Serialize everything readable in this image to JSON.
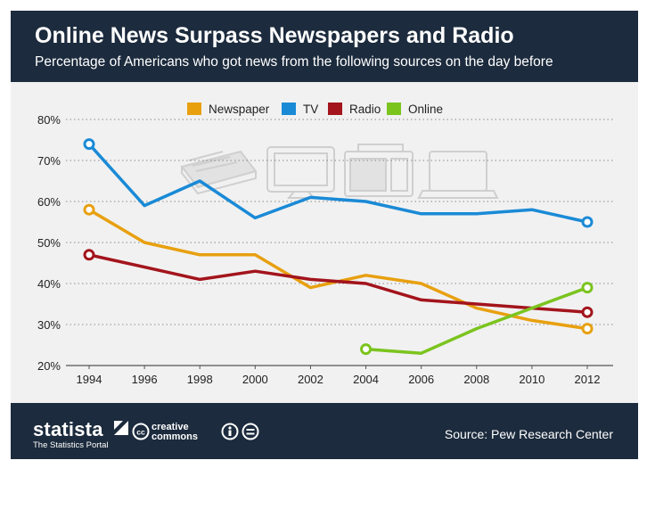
{
  "header": {
    "title": "Online News Surpass Newspapers and Radio",
    "subtitle": "Percentage of Americans who got news from the following sources on the day before"
  },
  "footer": {
    "brand": "statista",
    "tagline": "The Statistics Portal",
    "cc_top": "creative",
    "cc_bottom": "commons",
    "source": "Source: Pew Research Center"
  },
  "colors": {
    "header_bg": "#1c2b3d",
    "plot_bg": "#f1f1f1",
    "Newspaper": "#e8a00f",
    "TV": "#1a8ad6",
    "Radio": "#a3141c",
    "Online": "#7bc41e"
  },
  "icons": [
    "newspaper-icon",
    "tv-icon",
    "radio-icon",
    "laptop-icon"
  ],
  "chart_data": {
    "type": "line",
    "title": "Online News Surpass Newspapers and Radio",
    "subtitle": "Percentage of Americans who got news from the following sources on the day before",
    "xlabel": "",
    "ylabel": "",
    "x": [
      1994,
      1996,
      1998,
      2000,
      2002,
      2004,
      2006,
      2008,
      2010,
      2012
    ],
    "y_ticks": [
      "20%",
      "30%",
      "40%",
      "50%",
      "60%",
      "70%",
      "80%"
    ],
    "y_tick_values": [
      20,
      30,
      40,
      50,
      60,
      70,
      80
    ],
    "ylim": [
      20,
      80
    ],
    "grid": true,
    "legend_position": "top",
    "series": [
      {
        "name": "Newspaper",
        "values": [
          58,
          50,
          47,
          47,
          39,
          42,
          40,
          34,
          31,
          29
        ]
      },
      {
        "name": "TV",
        "values": [
          74,
          59,
          65,
          56,
          61,
          60,
          57,
          57,
          58,
          55
        ]
      },
      {
        "name": "Radio",
        "values": [
          47,
          44,
          41,
          43,
          41,
          40,
          36,
          35,
          34,
          33
        ]
      },
      {
        "name": "Online",
        "values": [
          null,
          null,
          null,
          null,
          null,
          24,
          23,
          29,
          34,
          39
        ]
      }
    ]
  }
}
